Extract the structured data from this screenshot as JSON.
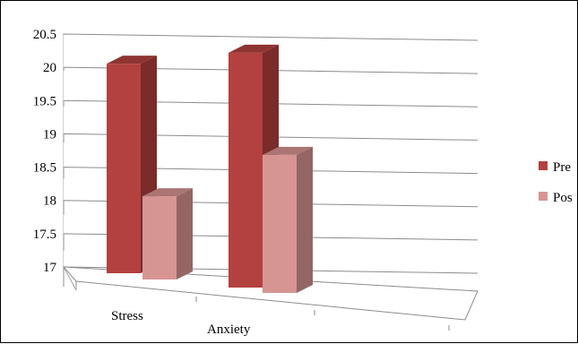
{
  "chart_data": {
    "type": "bar",
    "style": "3d-clustered-column",
    "categories": [
      "Stress",
      "Anxiety"
    ],
    "series": [
      {
        "name": "Pre",
        "values": [
          20.1,
          20.3
        ],
        "color": "#b2413f",
        "side_color": "#7a2b2a",
        "top_color": "#8e3432"
      },
      {
        "name": "Pos",
        "values": [
          18.2,
          18.9
        ],
        "color": "#d69593",
        "side_color": "#936664",
        "top_color": "#aa7573"
      }
    ],
    "y_ticks": [
      "17",
      "17.5",
      "18",
      "18.5",
      "19",
      "19.5",
      "20",
      "20.5"
    ],
    "ylim": [
      17,
      20.5
    ],
    "grid": true,
    "legend": "right"
  }
}
